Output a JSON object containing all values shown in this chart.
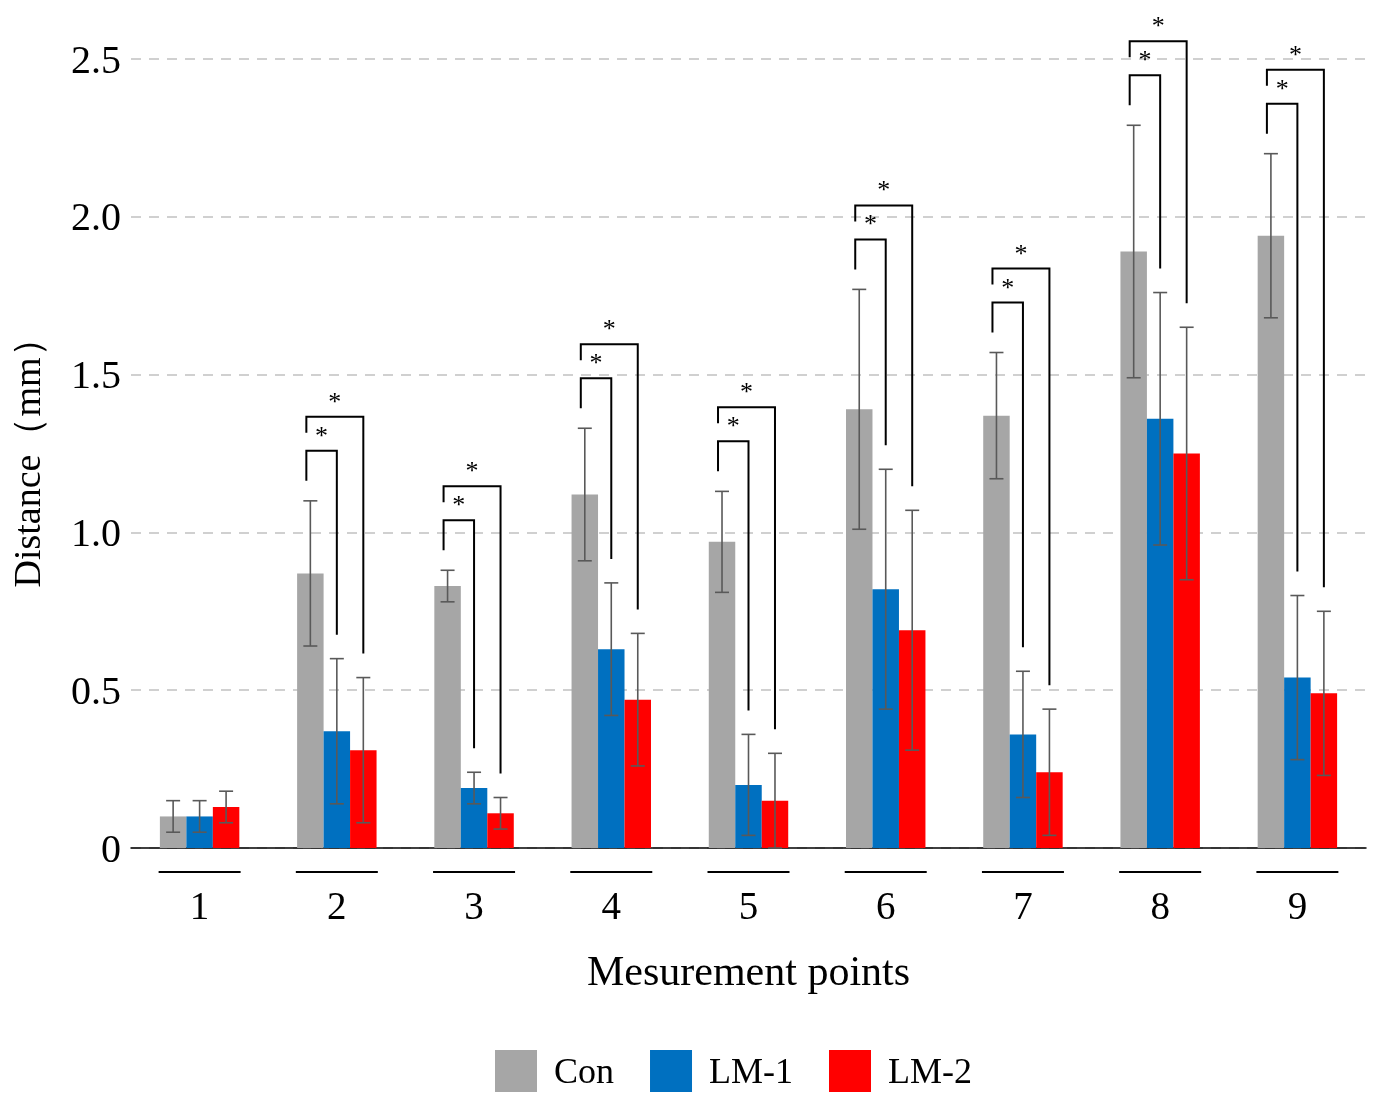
{
  "chart_data": {
    "type": "bar",
    "xlabel": "Mesurement points",
    "ylabel": "Distance（mm）",
    "categories": [
      "1",
      "2",
      "3",
      "4",
      "5",
      "6",
      "7",
      "8",
      "9"
    ],
    "series": [
      {
        "name": "Con",
        "color": "#a6a6a6",
        "values": [
          0.1,
          0.87,
          0.83,
          1.12,
          0.97,
          1.39,
          1.37,
          1.89,
          1.94
        ],
        "errors": [
          0.05,
          0.23,
          0.05,
          0.21,
          0.16,
          0.38,
          0.2,
          0.4,
          0.26
        ]
      },
      {
        "name": "LM-1",
        "color": "#0070c0",
        "values": [
          0.1,
          0.37,
          0.19,
          0.63,
          0.2,
          0.82,
          0.36,
          1.36,
          0.54
        ],
        "errors": [
          0.05,
          0.23,
          0.05,
          0.21,
          0.16,
          0.38,
          0.2,
          0.4,
          0.26
        ]
      },
      {
        "name": "LM-2",
        "color": "#ff0000",
        "values": [
          0.13,
          0.31,
          0.11,
          0.47,
          0.15,
          0.69,
          0.24,
          1.25,
          0.49
        ],
        "errors": [
          0.05,
          0.23,
          0.05,
          0.21,
          0.15,
          0.38,
          0.2,
          0.4,
          0.26
        ]
      }
    ],
    "ylim": [
      0,
      2.5
    ],
    "yticks": [
      0,
      0.5,
      {
        "value": 1,
        "label": "1.0"
      },
      1.5,
      {
        "value": 2,
        "label": "2.0"
      },
      2.5
    ],
    "grid": "y",
    "legend": "bottom",
    "annotations": [
      "*",
      "*",
      "*",
      "*",
      "*",
      "*",
      "*",
      "*",
      "*",
      "*",
      "*",
      "*",
      "*",
      "*",
      "*",
      "*"
    ]
  }
}
